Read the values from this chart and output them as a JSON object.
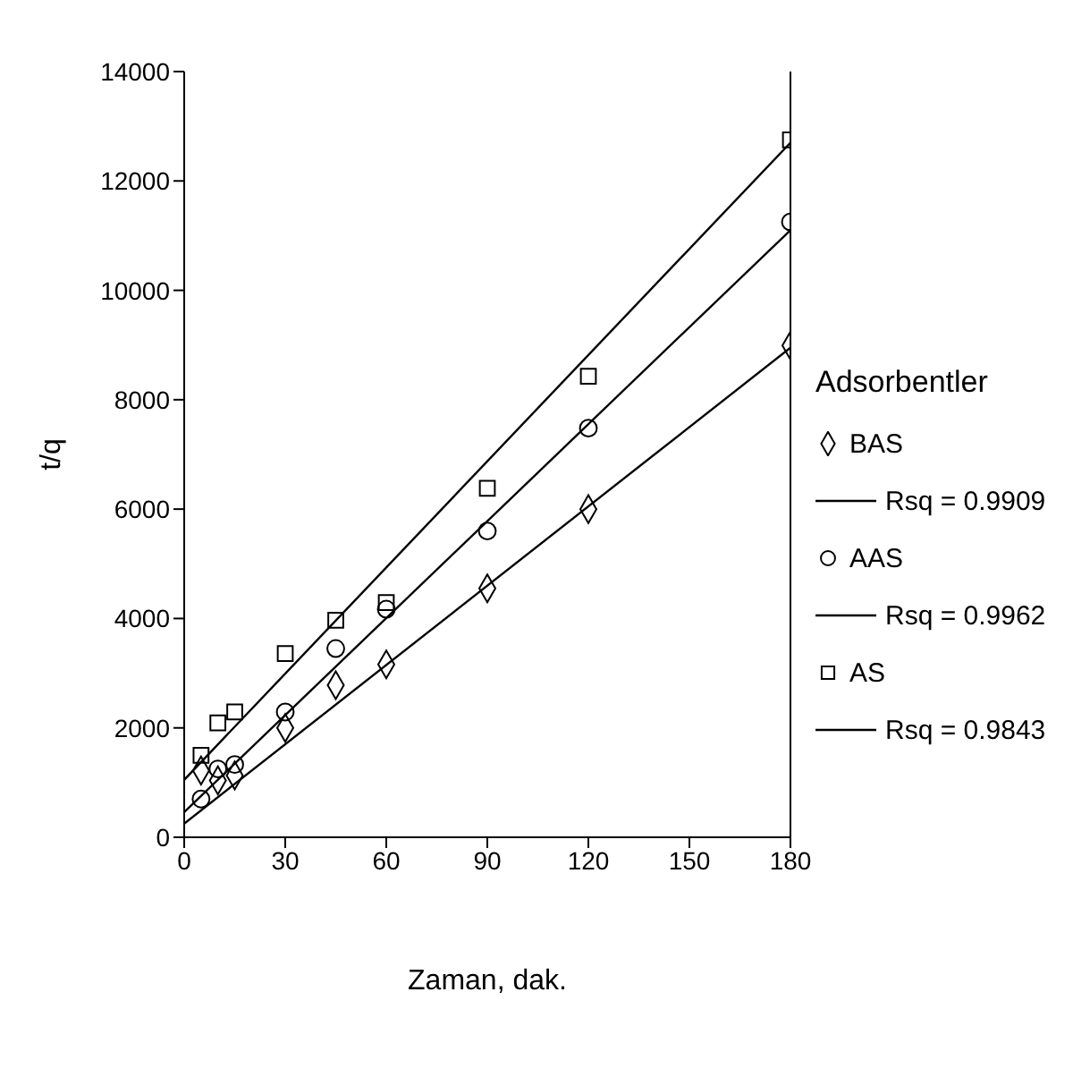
{
  "chart_data": {
    "type": "scatter",
    "xlabel": "Zaman, dak.",
    "ylabel": "t/q",
    "legend_title": "Adsorbentler",
    "legend": "right",
    "grid": false,
    "xlim": [
      0,
      180
    ],
    "xticks": [
      0,
      30,
      60,
      90,
      120,
      150,
      180
    ],
    "ylim": [
      0,
      14000
    ],
    "yticks": [
      0,
      2000,
      4000,
      6000,
      8000,
      10000,
      12000,
      14000
    ],
    "series": [
      {
        "name": "BAS",
        "marker": "diamond",
        "color": "#000000",
        "x": [
          5,
          10,
          15,
          30,
          45,
          60,
          90,
          120,
          180
        ],
        "values": [
          1220,
          1040,
          1130,
          2000,
          2780,
          3160,
          4550,
          6000,
          8990
        ]
      },
      {
        "name": "Rsq = 0.9909",
        "type": "line",
        "color": "#000000",
        "x": [
          0,
          180
        ],
        "values": [
          250,
          8950
        ]
      },
      {
        "name": "AAS",
        "marker": "circle",
        "color": "#000000",
        "x": [
          5,
          10,
          15,
          30,
          45,
          60,
          90,
          120,
          180
        ],
        "values": [
          700,
          1250,
          1330,
          2290,
          3450,
          4170,
          5600,
          7480,
          11250
        ]
      },
      {
        "name": "Rsq = 0.9962",
        "type": "line",
        "color": "#000000",
        "x": [
          0,
          180
        ],
        "values": [
          460,
          11100
        ]
      },
      {
        "name": "AS",
        "marker": "square",
        "color": "#000000",
        "x": [
          5,
          10,
          15,
          30,
          45,
          60,
          90,
          120,
          180
        ],
        "values": [
          1500,
          2090,
          2290,
          3360,
          3970,
          4290,
          6380,
          8430,
          12750
        ]
      },
      {
        "name": "Rsq = 0.9843",
        "type": "line",
        "color": "#000000",
        "x": [
          0,
          180
        ],
        "values": [
          1050,
          12700
        ]
      }
    ]
  }
}
